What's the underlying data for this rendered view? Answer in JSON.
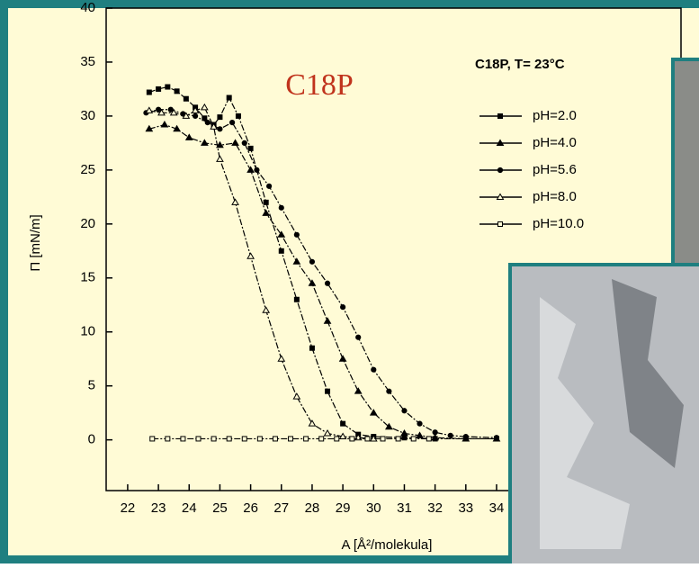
{
  "chart_data": {
    "type": "line",
    "annotation": "C18P",
    "legend_title": "C18P, T= 23°C",
    "x_label": "A [Å²/molekula]",
    "y_label": "Π [mN/m]",
    "xlim": [
      21.3,
      40
    ],
    "ylim": [
      -4.7,
      40
    ],
    "xticks": [
      22,
      23,
      24,
      25,
      26,
      27,
      28,
      29,
      30,
      31,
      32,
      33,
      34
    ],
    "yticks": [
      0,
      5,
      10,
      15,
      20,
      25,
      30,
      35,
      40
    ],
    "legend": "upper right",
    "series": [
      {
        "name": "pH=2.0",
        "color": "#000000",
        "marker": "square",
        "x": [
          22.7,
          23.0,
          23.3,
          23.6,
          23.9,
          24.2,
          24.5,
          24.8,
          25.0,
          25.3,
          25.6,
          26.0,
          26.5,
          27.0,
          27.5,
          28.0,
          28.5,
          29.0,
          29.5,
          30.0,
          31.0,
          32.0,
          33.0,
          34.0
        ],
        "values": [
          32.2,
          32.5,
          32.7,
          32.3,
          31.6,
          30.8,
          29.8,
          29.2,
          29.9,
          31.7,
          30.0,
          27.0,
          22.0,
          17.5,
          13.0,
          8.5,
          4.5,
          1.5,
          0.5,
          0.3,
          0.2,
          0.1,
          0.1,
          0.1
        ]
      },
      {
        "name": "pH=4.0",
        "color": "#000000",
        "marker": "triangle",
        "x": [
          22.7,
          23.2,
          23.6,
          24.0,
          24.5,
          25.0,
          25.5,
          26.0,
          26.5,
          27.0,
          27.5,
          28.0,
          28.5,
          29.0,
          29.5,
          30.0,
          30.5,
          31.0,
          31.5,
          32.0,
          33.0,
          34.0
        ],
        "values": [
          28.8,
          29.2,
          28.8,
          28.0,
          27.5,
          27.3,
          27.5,
          25.0,
          21.0,
          19.0,
          16.5,
          14.5,
          11.0,
          7.5,
          4.5,
          2.5,
          1.2,
          0.6,
          0.4,
          0.2,
          0.1,
          0.1
        ]
      },
      {
        "name": "pH=5.6",
        "color": "#000000",
        "marker": "circle",
        "x": [
          22.6,
          23.0,
          23.4,
          23.8,
          24.2,
          24.6,
          25.0,
          25.4,
          25.8,
          26.2,
          26.6,
          27.0,
          27.5,
          28.0,
          28.5,
          29.0,
          29.5,
          30.0,
          30.5,
          31.0,
          31.5,
          32.0,
          32.5,
          33.0,
          34.0
        ],
        "values": [
          30.3,
          30.6,
          30.6,
          30.2,
          30.0,
          29.4,
          28.8,
          29.4,
          27.5,
          25.0,
          23.5,
          21.5,
          19.0,
          16.5,
          14.5,
          12.3,
          9.5,
          6.5,
          4.5,
          2.7,
          1.5,
          0.7,
          0.4,
          0.3,
          0.2
        ]
      },
      {
        "name": "pH=8.0",
        "color": "#000000",
        "marker": "triangle-open",
        "x": [
          22.7,
          23.1,
          23.5,
          23.9,
          24.2,
          24.5,
          24.8,
          25.0,
          25.5,
          26.0,
          26.5,
          27.0,
          27.5,
          28.0,
          28.5,
          29.0,
          29.5,
          30.0
        ],
        "values": [
          30.5,
          30.3,
          30.3,
          30.0,
          30.5,
          30.8,
          29.0,
          26.0,
          22.0,
          17.0,
          12.0,
          7.5,
          4.0,
          1.5,
          0.6,
          0.3,
          0.2,
          0.1
        ]
      },
      {
        "name": "pH=10.0",
        "color": "#000000",
        "marker": "square-open",
        "x": [
          22.8,
          23.3,
          23.8,
          24.3,
          24.8,
          25.3,
          25.8,
          26.3,
          26.8,
          27.3,
          27.8,
          28.3,
          28.8,
          29.3,
          29.8,
          30.3,
          30.8,
          31.3,
          31.8
        ],
        "values": [
          0.1,
          0.1,
          0.1,
          0.1,
          0.1,
          0.1,
          0.1,
          0.1,
          0.1,
          0.1,
          0.1,
          0.1,
          0.1,
          0.1,
          0.1,
          0.1,
          0.1,
          0.1,
          0.1
        ]
      }
    ]
  }
}
